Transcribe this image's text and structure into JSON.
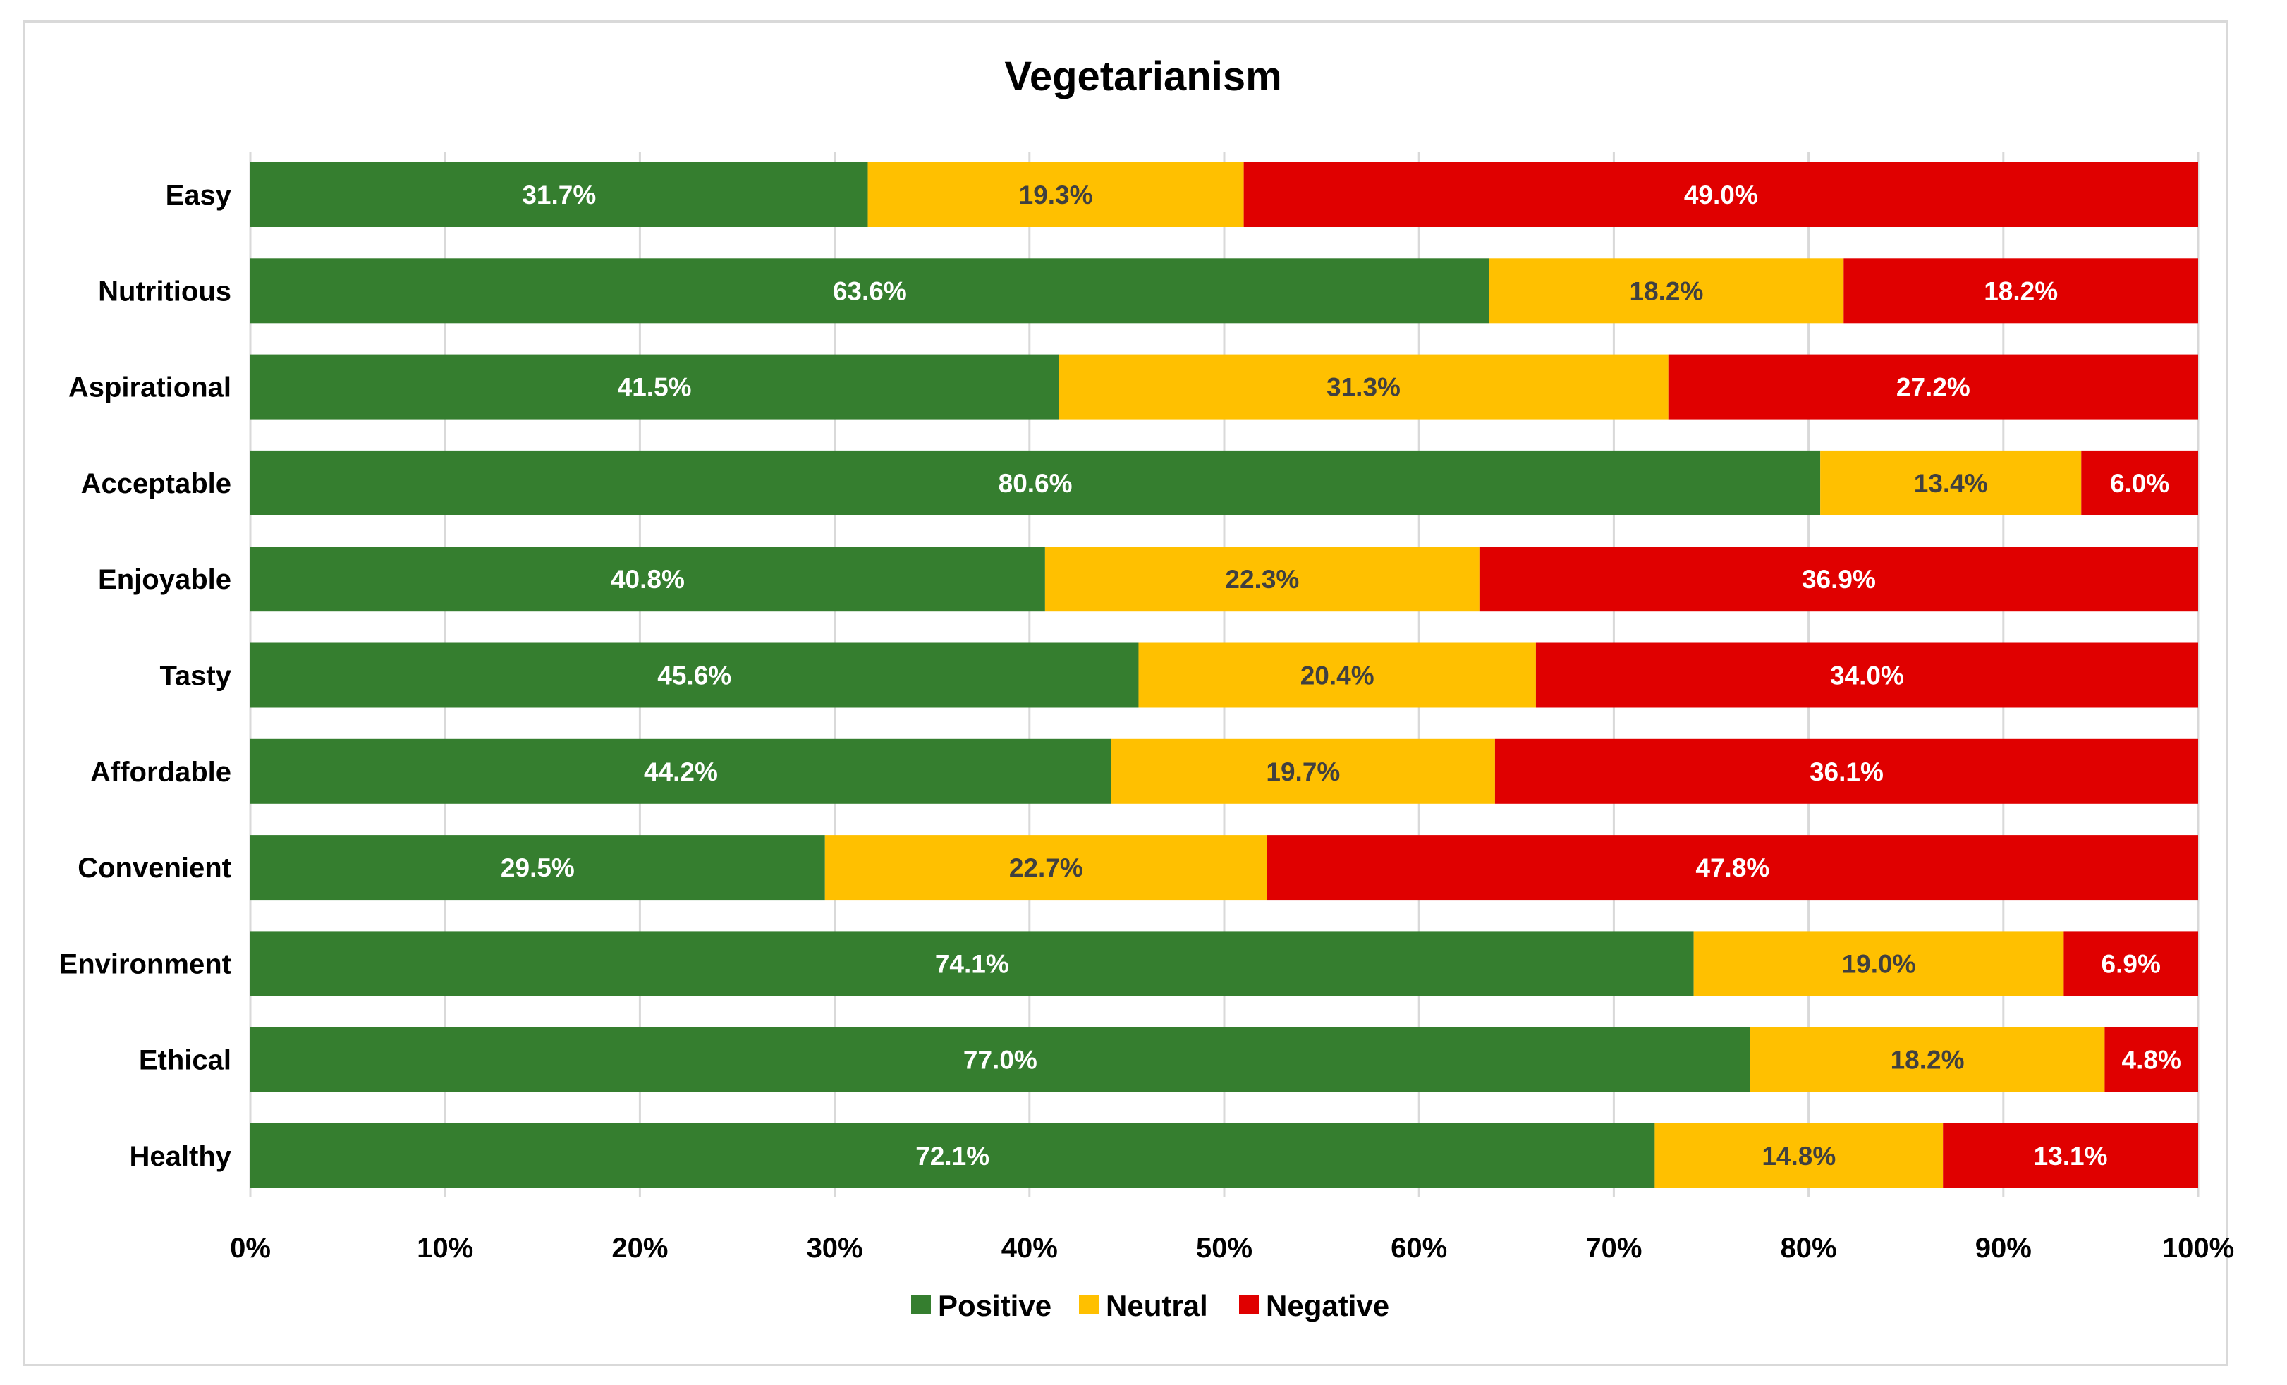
{
  "chart_data": {
    "type": "bar",
    "orientation": "horizontal",
    "stacked": "percent",
    "title": "Vegetarianism",
    "xlabel": "",
    "ylabel": "",
    "xlim": [
      0,
      100
    ],
    "grid": true,
    "legend_position": "bottom",
    "categories": [
      "Easy",
      "Nutritious",
      "Aspirational",
      "Acceptable",
      "Enjoyable",
      "Tasty",
      "Affordable",
      "Convenient",
      "Environment",
      "Ethical",
      "Healthy"
    ],
    "x_ticks": [
      "0%",
      "10%",
      "20%",
      "30%",
      "40%",
      "50%",
      "60%",
      "70%",
      "80%",
      "90%",
      "100%"
    ],
    "series": [
      {
        "name": "Positive",
        "color": "#357e2f",
        "label_color": "#ffffff",
        "values": [
          31.7,
          63.6,
          41.5,
          80.6,
          40.8,
          45.6,
          44.2,
          29.5,
          74.1,
          77.0,
          72.1
        ],
        "labels": [
          "31.7%",
          "63.6%",
          "41.5%",
          "80.6%",
          "40.8%",
          "45.6%",
          "44.2%",
          "29.5%",
          "74.1%",
          "77.0%",
          "72.1%"
        ]
      },
      {
        "name": "Neutral",
        "color": "#ffc000",
        "label_color": "#404040",
        "values": [
          19.3,
          18.2,
          31.3,
          13.4,
          22.3,
          20.4,
          19.7,
          22.7,
          19.0,
          18.2,
          14.8
        ],
        "labels": [
          "19.3%",
          "18.2%",
          "31.3%",
          "13.4%",
          "22.3%",
          "20.4%",
          "19.7%",
          "22.7%",
          "19.0%",
          "18.2%",
          "14.8%"
        ]
      },
      {
        "name": "Negative",
        "color": "#e00000",
        "label_color": "#ffffff",
        "values": [
          49.0,
          18.2,
          27.2,
          6.0,
          36.9,
          34.0,
          36.1,
          47.8,
          6.9,
          4.8,
          13.1
        ],
        "labels": [
          "49.0%",
          "18.2%",
          "27.2%",
          "6.0%",
          "36.9%",
          "34.0%",
          "36.1%",
          "47.8%",
          "6.9%",
          "4.8%",
          "13.1%"
        ]
      }
    ]
  }
}
